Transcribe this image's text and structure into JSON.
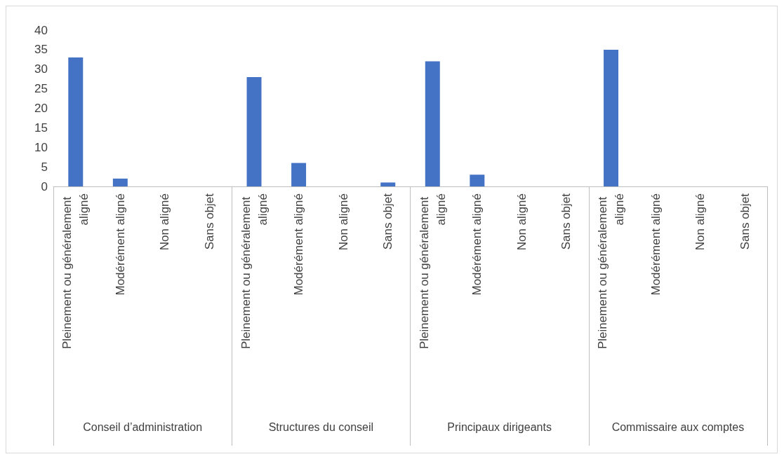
{
  "chart_data": {
    "type": "bar",
    "categories": [
      "Pleinement ou généralement aligné",
      "Modérément aligné",
      "Non aligné",
      "Sans objet",
      "Pleinement ou généralement aligné",
      "Modérément aligné",
      "Non aligné",
      "Sans objet",
      "Pleinement ou généralement aligné",
      "Modérément aligné",
      "Non aligné",
      "Sans objet",
      "Pleinement ou généralement aligné",
      "Modérément aligné",
      "Non aligné",
      "Sans objet"
    ],
    "values": [
      33,
      2,
      0,
      0,
      28,
      6,
      0,
      1,
      32,
      3,
      0,
      0,
      35,
      0,
      0,
      0
    ],
    "color": "#4472c4",
    "annotations": [
      "Conseil d’administration",
      "Structures du conseil",
      "Principaux dirigeants",
      "Commissaire aux comptes"
    ],
    "ylim": [
      0,
      40
    ],
    "yticks": [
      0,
      5,
      10,
      15,
      20,
      25,
      30,
      35,
      40
    ],
    "grid": false
  }
}
